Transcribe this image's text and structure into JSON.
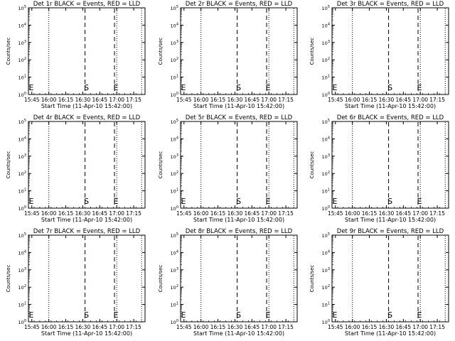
{
  "chart_data": [
    {
      "type": "line",
      "title": "Det 1r BLACK = Events, RED = LLD",
      "xlabel": "Start Time (11-Apr-10 15:42:00)",
      "ylabel": "Counts/sec"
    },
    {
      "type": "line",
      "title": "Det 2r BLACK = Events, RED = LLD",
      "xlabel": "Start Time (11-Apr-10 15:42:00)",
      "ylabel": "Counts/sec"
    },
    {
      "type": "line",
      "title": "Det 3r BLACK = Events, RED = LLD",
      "xlabel": "Start Time (11-Apr-10 15:42:00)",
      "ylabel": "Counts/sec"
    },
    {
      "type": "line",
      "title": "Det 4r BLACK = Events, RED = LLD",
      "xlabel": "Start Time (11-Apr-10 15:42:00)",
      "ylabel": "Counts/sec"
    },
    {
      "type": "line",
      "title": "Det 5r BLACK = Events, RED = LLD",
      "xlabel": "Start Time (11-Apr-10 15:42:00)",
      "ylabel": "Counts/sec"
    },
    {
      "type": "line",
      "title": "Det 6r BLACK = Events, RED = LLD",
      "xlabel": "Start Time (11-Apr-10 15:42:00)",
      "ylabel": "Counts/sec"
    },
    {
      "type": "line",
      "title": "Det 7r BLACK = Events, RED = LLD",
      "xlabel": "Start Time (11-Apr-10 15:42:00)",
      "ylabel": "Counts/sec"
    },
    {
      "type": "line",
      "title": "Det 8r BLACK = Events, RED = LLD",
      "xlabel": "Start Time (11-Apr-10 15:42:00)",
      "ylabel": "Counts/sec"
    },
    {
      "type": "line",
      "title": "Det 9r BLACK = Events, RED = LLD",
      "xlabel": "Start Time (11-Apr-10 15:42:00)",
      "ylabel": "Counts/sec"
    }
  ],
  "shared_axes": {
    "x_ticks": [
      {
        "label": "15:45",
        "min": 3
      },
      {
        "label": "16:00",
        "min": 18
      },
      {
        "label": "16:15",
        "min": 33
      },
      {
        "label": "16:30",
        "min": 48
      },
      {
        "label": "16:45",
        "min": 63
      },
      {
        "label": "17:00",
        "min": 78
      },
      {
        "label": "17:15",
        "min": 93
      }
    ],
    "x_range_min": [
      0,
      103
    ],
    "y_scale": "log",
    "y_ticks": [
      {
        "base": "10",
        "exp": "0",
        "e": 0
      },
      {
        "base": "10",
        "exp": "1",
        "e": 1
      },
      {
        "base": "10",
        "exp": "2",
        "e": 2
      },
      {
        "base": "10",
        "exp": "3",
        "e": 3
      },
      {
        "base": "10",
        "exp": "4",
        "e": 4
      },
      {
        "base": "10",
        "exp": "5",
        "e": 5
      }
    ],
    "y_range_exp": [
      0,
      5
    ]
  },
  "markers": [
    {
      "style": "dotted",
      "min": 18,
      "label": ""
    },
    {
      "style": "dashed",
      "min": 50,
      "label": "S"
    },
    {
      "style": "dashed",
      "min": 76,
      "label": "E"
    },
    {
      "style": "dotted",
      "min": 78,
      "label": ""
    },
    {
      "style": "dotted",
      "min": 100,
      "label": ""
    },
    {
      "style": "edge",
      "min": 0,
      "label": "E"
    }
  ]
}
